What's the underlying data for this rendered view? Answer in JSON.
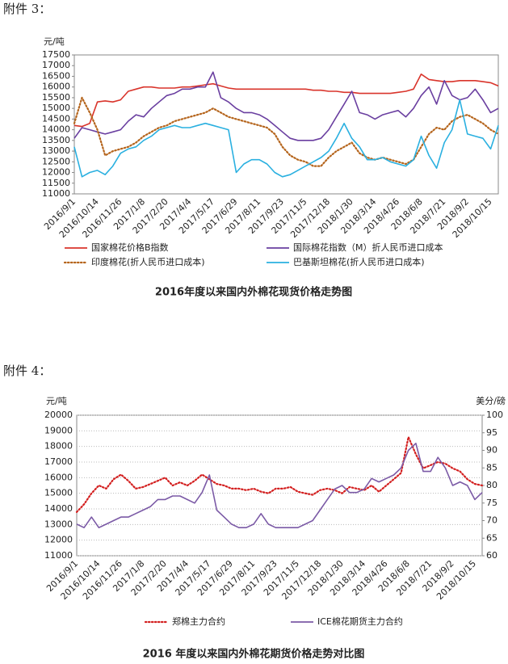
{
  "headings": [
    "附件 3：",
    "附件 4："
  ],
  "chart_data": [
    {
      "type": "line",
      "title": "2016年度以来国内外棉花现货价格走势图",
      "y_unit": "元/吨",
      "categories": [
        "2016/9/1",
        null,
        null,
        "2016/10/14",
        null,
        null,
        "2016/11/26",
        null,
        null,
        "2017/1/8",
        null,
        null,
        "2017/2/20",
        null,
        null,
        "2017/4/4",
        null,
        null,
        "2017/5/17",
        null,
        null,
        "2017/6/29",
        null,
        null,
        "2017/8/11",
        null,
        null,
        "2017/9/23",
        null,
        null,
        "2017/11/5",
        null,
        null,
        "2017/12/18",
        null,
        null,
        "2018/1/30",
        null,
        null,
        "2018/3/14",
        null,
        null,
        "2018/4/26",
        null,
        null,
        "2018/6/8",
        null,
        null,
        "2018/7/21",
        null,
        null,
        "2018/9/2",
        null,
        null,
        "2018/10/15",
        null
      ],
      "ylim": [
        11000,
        17500
      ],
      "yticks": [
        11000,
        11500,
        12000,
        12500,
        13000,
        13500,
        14000,
        14500,
        15000,
        15500,
        16000,
        16500,
        17000,
        17500
      ],
      "grid": false,
      "legend": "bottom",
      "series": [
        {
          "name": "国家棉花价格B指数",
          "color": "#d9342b",
          "style": "solid",
          "values": [
            14200,
            14150,
            14300,
            15300,
            15350,
            15300,
            15400,
            15800,
            15900,
            16000,
            16000,
            15950,
            15950,
            15950,
            16000,
            16000,
            16050,
            16100,
            16150,
            16050,
            15950,
            15900,
            15900,
            15900,
            15900,
            15900,
            15900,
            15900,
            15900,
            15900,
            15900,
            15850,
            15850,
            15800,
            15800,
            15750,
            15750,
            15700,
            15700,
            15700,
            15700,
            15700,
            15750,
            15800,
            15900,
            16600,
            16350,
            16300,
            16250,
            16250,
            16300,
            16300,
            16300,
            16250,
            16200,
            16050
          ]
        },
        {
          "name": "国际棉花指数（M）折人民币进口成本",
          "color": "#6a3fa0",
          "style": "solid",
          "values": [
            13600,
            14100,
            14000,
            13900,
            13800,
            13900,
            14000,
            14400,
            14700,
            14600,
            15000,
            15300,
            15600,
            15700,
            15900,
            15900,
            16000,
            16000,
            16700,
            15500,
            15300,
            15000,
            14800,
            14800,
            14700,
            14500,
            14200,
            13900,
            13600,
            13500,
            13500,
            13500,
            13600,
            14000,
            14600,
            15200,
            15800,
            14800,
            14700,
            14500,
            14700,
            14800,
            14900,
            14600,
            15000,
            15600,
            16000,
            15200,
            16300,
            15600,
            15400,
            15500,
            15900,
            15400,
            14800,
            15000
          ]
        },
        {
          "name": "印度棉花(折人民币进口成本)",
          "color": "#b5651d",
          "style": "dotted",
          "values": [
            14300,
            15500,
            14800,
            14000,
            12800,
            13000,
            13100,
            13200,
            13400,
            13700,
            13900,
            14100,
            14200,
            14400,
            14500,
            14600,
            14700,
            14800,
            15000,
            14800,
            14600,
            14500,
            14400,
            14300,
            14200,
            14100,
            13800,
            13200,
            12800,
            12600,
            12500,
            12300,
            12300,
            12700,
            13000,
            13200,
            13400,
            12900,
            12700,
            12600,
            12700,
            12600,
            12500,
            12400,
            12600,
            13200,
            13800,
            14100,
            14000,
            14400,
            14600,
            14700,
            14500,
            14300,
            14000,
            13800
          ]
        },
        {
          "name": "巴基斯坦棉花(折人民币进口成本)",
          "color": "#2ab0e0",
          "style": "solid",
          "values": [
            13200,
            11800,
            12000,
            12100,
            11900,
            12300,
            12900,
            13100,
            13200,
            13500,
            13700,
            14000,
            14100,
            14200,
            14100,
            14100,
            14200,
            14300,
            14200,
            14100,
            14000,
            12000,
            12400,
            12600,
            12600,
            12400,
            12000,
            11800,
            11900,
            12100,
            12300,
            12500,
            12700,
            13000,
            13600,
            14300,
            13600,
            13200,
            12600,
            12600,
            12700,
            12500,
            12400,
            12300,
            12600,
            13700,
            12800,
            12200,
            13400,
            14000,
            15400,
            13800,
            13700,
            13600,
            13100,
            14200
          ]
        }
      ]
    },
    {
      "type": "line",
      "title": "2016 年度以来国内外棉花期货价格走势对比图",
      "y_unit": "元/吨",
      "y2_unit": "美分/磅",
      "categories": [
        "2016/9/1",
        null,
        null,
        "2016/10/14",
        null,
        null,
        "2016/11/26",
        null,
        null,
        "2017/1/8",
        null,
        null,
        "2017/2/20",
        null,
        null,
        "2017/4/4",
        null,
        null,
        "2017/5/17",
        null,
        null,
        "2017/6/29",
        null,
        null,
        "2017/8/11",
        null,
        null,
        "2017/9/23",
        null,
        null,
        "2017/11/5",
        null,
        null,
        "2017/12/18",
        null,
        null,
        "2018/1/30",
        null,
        null,
        "2018/3/14",
        null,
        null,
        "2018/4/26",
        null,
        null,
        "2018/6/8",
        null,
        null,
        "2018/7/21",
        null,
        null,
        "2018/9/2",
        null,
        null,
        "2018/10/15",
        null
      ],
      "ylim": [
        11000,
        20000
      ],
      "yticks": [
        11000,
        12000,
        13000,
        14000,
        15000,
        16000,
        17000,
        18000,
        19000,
        20000
      ],
      "y2lim": [
        60,
        100
      ],
      "y2ticks": [
        60,
        65,
        70,
        75,
        80,
        85,
        90,
        95,
        100
      ],
      "grid": true,
      "legend": "bottom",
      "series": [
        {
          "name": "郑棉主力合约",
          "color": "#d32020",
          "style": "dotted",
          "values": [
            13800,
            14300,
            15000,
            15500,
            15300,
            15900,
            16200,
            15800,
            15300,
            15400,
            15600,
            15800,
            16000,
            15500,
            15700,
            15500,
            15800,
            16200,
            15900,
            15600,
            15500,
            15300,
            15300,
            15200,
            15300,
            15100,
            15000,
            15300,
            15300,
            15400,
            15100,
            15000,
            14900,
            15200,
            15300,
            15200,
            15000,
            15400,
            15300,
            15200,
            15500,
            15100,
            15500,
            15900,
            16300,
            18600,
            17500,
            16600,
            16800,
            17000,
            16900,
            16600,
            16400,
            15900,
            15600,
            15500
          ]
        },
        {
          "name": "ICE棉花期货主力合约",
          "color": "#7b5aa6",
          "style": "solid",
          "axis": "y2",
          "values": [
            69,
            68,
            71,
            68,
            69,
            70,
            71,
            71,
            72,
            73,
            74,
            76,
            76,
            77,
            77,
            76,
            75,
            78,
            83,
            73,
            71,
            69,
            68,
            68,
            69,
            72,
            69,
            68,
            68,
            68,
            68,
            69,
            70,
            73,
            76,
            79,
            80,
            78,
            78,
            79,
            82,
            81,
            82,
            83,
            85,
            90,
            92,
            84,
            84,
            88,
            85,
            80,
            81,
            80,
            76,
            78
          ]
        }
      ]
    }
  ]
}
